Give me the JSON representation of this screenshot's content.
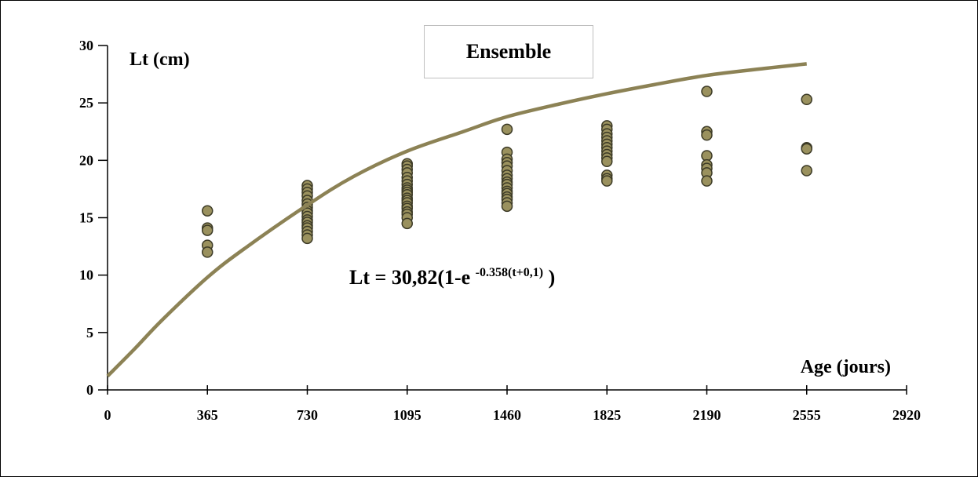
{
  "chart_data": {
    "type": "scatter",
    "legend_label": "Ensemble",
    "y_axis_title": "Lt (cm)",
    "x_axis_title": "Age (jours)",
    "equation": {
      "main": "Lt = 30,82(1-e ",
      "superscript": "-0.358(t+0,1)",
      "close": " )"
    },
    "xlim": [
      0,
      2920
    ],
    "ylim": [
      0,
      30
    ],
    "x_ticks": [
      0,
      365,
      730,
      1095,
      1460,
      1825,
      2190,
      2555,
      2920
    ],
    "y_ticks": [
      0,
      5,
      10,
      15,
      20,
      25,
      30
    ],
    "grid": false,
    "colors": {
      "point_fill": "#9a915e",
      "point_stroke": "#3c3a26",
      "curve": "#8c8255"
    },
    "curve": {
      "x": [
        0,
        100,
        200,
        365,
        500,
        730,
        900,
        1095,
        1300,
        1460,
        1650,
        1825,
        2000,
        2190,
        2400,
        2555
      ],
      "y": [
        1.2,
        3.6,
        6.1,
        9.8,
        12.3,
        16.1,
        18.6,
        20.8,
        22.5,
        23.8,
        24.9,
        25.8,
        26.6,
        27.4,
        28.0,
        28.4
      ]
    },
    "points": [
      {
        "x": 365,
        "y": [
          15.6,
          14.1,
          13.9,
          12.6,
          12.0
        ]
      },
      {
        "x": 730,
        "y": [
          17.8,
          17.5,
          17.2,
          16.9,
          16.5,
          16.2,
          15.9,
          15.6,
          15.4,
          15.1,
          14.8,
          14.6,
          14.3,
          14.1,
          13.8,
          13.5,
          13.2
        ]
      },
      {
        "x": 1095,
        "y": [
          19.7,
          19.5,
          19.2,
          18.9,
          18.5,
          18.2,
          17.9,
          17.6,
          17.4,
          17.2,
          17.0,
          16.7,
          16.5,
          16.3,
          16.0,
          15.8,
          15.5,
          15.3,
          15.0,
          14.5
        ]
      },
      {
        "x": 1460,
        "y": [
          22.7,
          20.7,
          20.1,
          19.8,
          19.5,
          19.1,
          18.7,
          18.4,
          18.1,
          17.9,
          17.6,
          17.3,
          17.1,
          16.8,
          16.6,
          16.3,
          16.0
        ]
      },
      {
        "x": 1825,
        "y": [
          23.0,
          22.7,
          22.3,
          22.0,
          21.7,
          21.4,
          21.1,
          20.8,
          20.5,
          20.2,
          19.9,
          18.7,
          18.4,
          18.2
        ]
      },
      {
        "x": 2190,
        "y": [
          26.0,
          22.5,
          22.2,
          20.4,
          19.6,
          19.3,
          18.9,
          18.2
        ]
      },
      {
        "x": 2555,
        "y": [
          25.3,
          21.1,
          21.0,
          19.1
        ]
      }
    ]
  }
}
